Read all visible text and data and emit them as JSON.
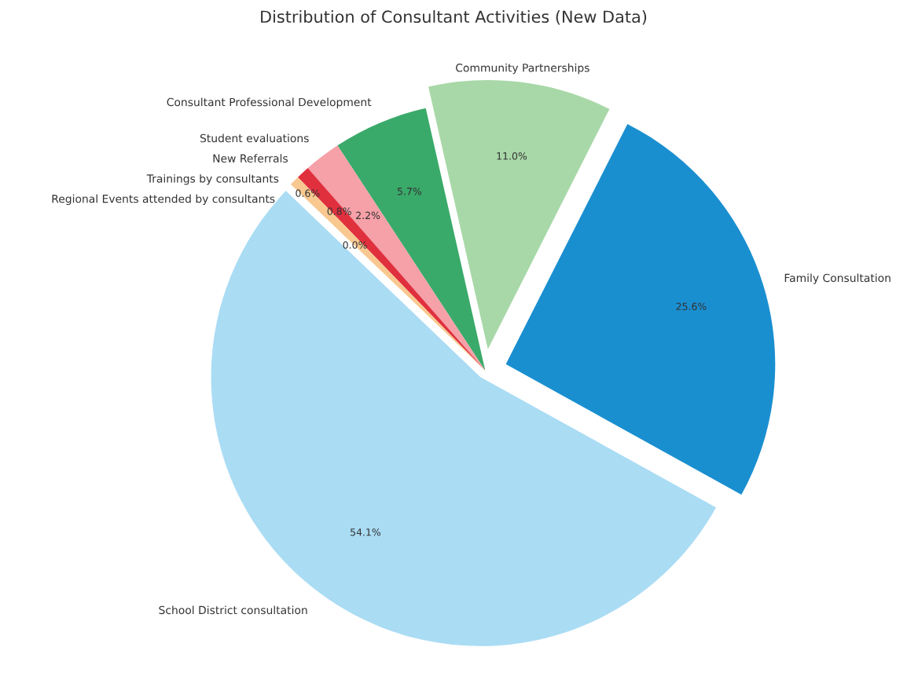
{
  "chart_data": {
    "type": "pie",
    "title": "Distribution of Consultant Activities (New Data)",
    "categories": [
      "Family Consultation",
      "Community Partnerships",
      "Consultant Professional Development",
      "Student evaluations",
      "New Referrals",
      "Trainings by consultants",
      "Regional Events attended by consultants",
      "School District consultation"
    ],
    "values": [
      25.6,
      11.0,
      5.7,
      2.2,
      0.8,
      0.6,
      0.0,
      54.1
    ],
    "value_labels": [
      "25.6%",
      "11.0%",
      "5.7%",
      "2.2%",
      "0.8%",
      "0.6%",
      "0.0%",
      "54.1%"
    ],
    "colors": [
      "#1a8fd0",
      "#a8d8a8",
      "#3aaa6a",
      "#f6a0a8",
      "#e0303e",
      "#f8c890",
      "#f4b0c8",
      "#aadcf4"
    ]
  }
}
